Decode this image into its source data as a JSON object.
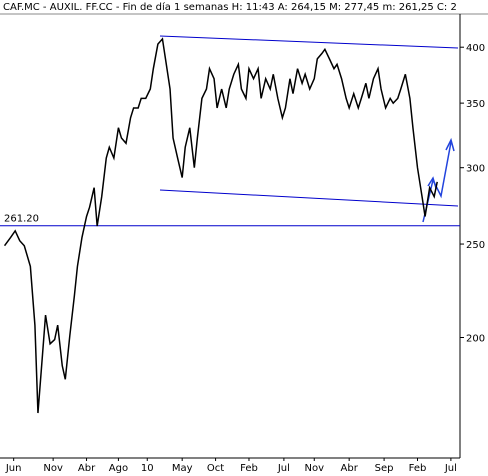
{
  "chart_data": {
    "type": "line",
    "title": "CAF.MC - AUXIL. FF.CC - Fin de día 1 semanas H: 11:43 A: 264,15 M: 277,45 m: 261,25 C: 2",
    "x": [
      3,
      7,
      10,
      13,
      16,
      20,
      23,
      25,
      28,
      30,
      33,
      36,
      38,
      41,
      43,
      46,
      49,
      51,
      54,
      57,
      59,
      62,
      64,
      67,
      70,
      72,
      75,
      78,
      80,
      83,
      86,
      88,
      91,
      93,
      96,
      99,
      101,
      104,
      107,
      109,
      112,
      114,
      117,
      120,
      122,
      125,
      128,
      130,
      133,
      136,
      138,
      141,
      143,
      146,
      149,
      151,
      154,
      157,
      159,
      162,
      164,
      167,
      170,
      172,
      175,
      178,
      180,
      183,
      186,
      188,
      191,
      193,
      196,
      199,
      201,
      204,
      207,
      209,
      212,
      214,
      217,
      220,
      222,
      225,
      228,
      230,
      233,
      236,
      238,
      241,
      243,
      246,
      249,
      251,
      254,
      257,
      259,
      262,
      264,
      267,
      270,
      272,
      275,
      278,
      280,
      283,
      286,
      288
    ],
    "series": [
      {
        "color": "#000000",
        "values": [
          249,
          254,
          258,
          252,
          249,
          237,
          206,
          167,
          192,
          211,
          197,
          199,
          206,
          187,
          181,
          201,
          221,
          237,
          254,
          267,
          273,
          286,
          261,
          280,
          307,
          315,
          307,
          330,
          322,
          318,
          338,
          346,
          346,
          354,
          354,
          362,
          380,
          403,
          408,
          389,
          362,
          322,
          307,
          293,
          315,
          330,
          300,
          322,
          354,
          362,
          380,
          371,
          346,
          362,
          346,
          362,
          375,
          384,
          362,
          354,
          380,
          371,
          380,
          354,
          371,
          362,
          375,
          354,
          338,
          346,
          371,
          358,
          380,
          367,
          375,
          362,
          371,
          389,
          394,
          398,
          389,
          380,
          384,
          371,
          354,
          346,
          358,
          346,
          354,
          367,
          354,
          371,
          380,
          362,
          346,
          354,
          350,
          354,
          362,
          375,
          354,
          330,
          300,
          280,
          267,
          286,
          280,
          290
        ]
      }
    ],
    "xlim": [
      0,
      303
    ],
    "xticks": [
      {
        "value": 9,
        "label": "Jun"
      },
      {
        "value": 35,
        "label": "Nov"
      },
      {
        "value": 57,
        "label": "Abr"
      },
      {
        "value": 78,
        "label": "Ago"
      },
      {
        "value": 97,
        "label": "10"
      },
      {
        "value": 120,
        "label": "May"
      },
      {
        "value": 142,
        "label": "Oct"
      },
      {
        "value": 164,
        "label": "Feb"
      },
      {
        "value": 187,
        "label": "Jul"
      },
      {
        "value": 207,
        "label": "Nov"
      },
      {
        "value": 230,
        "label": "Abr"
      },
      {
        "value": 253,
        "label": "Sep"
      },
      {
        "value": 275,
        "label": "Feb"
      },
      {
        "value": 297,
        "label": "Jul"
      }
    ],
    "ylim": [
      150,
      433
    ],
    "yticks": [
      200,
      250,
      300,
      350,
      400
    ],
    "log_scale": true,
    "hline": {
      "value": 261.2,
      "label": "261.20",
      "color": "#0000cc"
    }
  }
}
